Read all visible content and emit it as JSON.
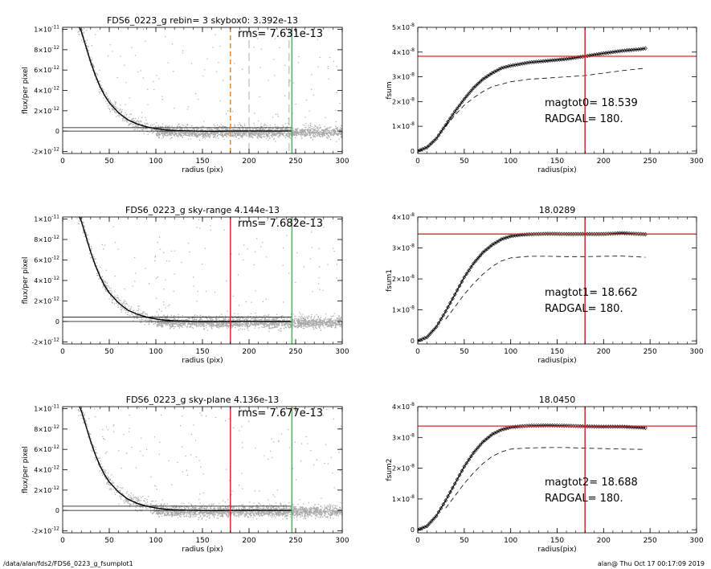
{
  "footer": {
    "left": "/data/alan/fds2/FDS6_0223_g_fsumplot1",
    "right": "alan@  Thu Oct 17 00:17:09 2019"
  },
  "colors": {
    "points": "#a8a8a8",
    "profile": "#000000",
    "red": "#d42a2a",
    "green": "#22d12a",
    "orange": "#e8892a",
    "gray_dash": "#9a9a9a"
  },
  "chart_data": [
    {
      "type": "scatter",
      "title": "FDS6_0223_g rebin= 3    skybox0:  3.392e-13",
      "annotation": "rms= 7.631e-13",
      "xlabel": "radius (pix)",
      "ylabel": "flux/per pixel",
      "xlim": [
        0,
        300
      ],
      "ylim": [
        -2.2e-12,
        1.02e-11
      ],
      "xticks": [
        "0",
        "50",
        "100",
        "150",
        "200",
        "250",
        "300"
      ],
      "yticks": [
        {
          "value": 1e-11,
          "mantissa": "1×10",
          "exp": "-11"
        },
        {
          "value": 8e-12,
          "mantissa": "8×10",
          "exp": "-12"
        },
        {
          "value": 6e-12,
          "mantissa": "6×10",
          "exp": "-12"
        },
        {
          "value": 4e-12,
          "mantissa": "4×10",
          "exp": "-12"
        },
        {
          "value": 2e-12,
          "mantissa": "2×10",
          "exp": "-12"
        },
        {
          "value": 0,
          "mantissa": "0",
          "exp": ""
        },
        {
          "value": -2e-12,
          "mantissa": "-2×10",
          "exp": "-12"
        }
      ],
      "profile": {
        "x": [
          18,
          20,
          25,
          30,
          35,
          40,
          45,
          50,
          60,
          70,
          80,
          90,
          100,
          110,
          120,
          140,
          160,
          180,
          200,
          220,
          245
        ],
        "y": [
          1.02e-11,
          9.8e-12,
          8.3e-12,
          6.8e-12,
          5.5e-12,
          4.4e-12,
          3.5e-12,
          2.8e-12,
          1.8e-12,
          1.1e-12,
          7e-13,
          4.2e-13,
          2.4e-13,
          1.2e-13,
          6e-14,
          0,
          -2e-14,
          0,
          1e-14,
          0,
          0
        ]
      },
      "hlines": [
        3.392e-13,
        0
      ],
      "vlines": [
        {
          "x": 180,
          "color": "orange",
          "dash": true
        },
        {
          "x": 200,
          "color": "gray",
          "dash": true
        },
        {
          "x": 243,
          "color": "gray",
          "dash": true
        },
        {
          "x": 246,
          "color": "green",
          "dash": false
        }
      ]
    },
    {
      "type": "line",
      "title": "",
      "xlabel": "radius(pix)",
      "ylabel": "fsum",
      "xlim": [
        0,
        300
      ],
      "ylim": [
        -1e-09,
        5e-08
      ],
      "xticks": [
        "0",
        "50",
        "100",
        "150",
        "200",
        "250",
        "300"
      ],
      "yticks": [
        {
          "value": 5e-08,
          "mantissa": "5×10",
          "exp": "-8"
        },
        {
          "value": 4e-08,
          "mantissa": "4×10",
          "exp": "-8"
        },
        {
          "value": 3e-08,
          "mantissa": "3×10",
          "exp": "-8"
        },
        {
          "value": 2e-08,
          "mantissa": "2×10",
          "exp": "-8"
        },
        {
          "value": 1e-08,
          "mantissa": "1×10",
          "exp": "-8"
        },
        {
          "value": 0,
          "mantissa": "0",
          "exp": ""
        }
      ],
      "curve": {
        "x": [
          0,
          10,
          20,
          30,
          40,
          50,
          60,
          70,
          80,
          90,
          100,
          120,
          140,
          160,
          180,
          200,
          220,
          240,
          245
        ],
        "y": [
          0,
          1.5e-09,
          5e-09,
          1.05e-08,
          1.6e-08,
          2.1e-08,
          2.55e-08,
          2.9e-08,
          3.15e-08,
          3.35e-08,
          3.45e-08,
          3.58e-08,
          3.65e-08,
          3.72e-08,
          3.83e-08,
          3.95e-08,
          4.05e-08,
          4.12e-08,
          4.15e-08
        ]
      },
      "dashed": {
        "x": [
          30,
          40,
          50,
          60,
          70,
          80,
          100,
          120,
          140,
          160,
          180,
          200,
          220,
          245
        ],
        "y": [
          1e-08,
          1.45e-08,
          1.85e-08,
          2.15e-08,
          2.4e-08,
          2.6e-08,
          2.8e-08,
          2.9e-08,
          2.95e-08,
          3e-08,
          3.05e-08,
          3.15e-08,
          3.25e-08,
          3.35e-08
        ]
      },
      "hline": 3.83e-08,
      "vline": 180,
      "annotations": [
        "magtot0=  18.539",
        "RADGAL=     180."
      ]
    },
    {
      "type": "scatter",
      "title": "FDS6_0223_g sky-range  4.144e-13",
      "annotation": "rms= 7.682e-13",
      "xlabel": "radius (pix)",
      "ylabel": "flux/per pixel",
      "xlim": [
        0,
        300
      ],
      "ylim": [
        -2.2e-12,
        1.02e-11
      ],
      "xticks": [
        "0",
        "50",
        "100",
        "150",
        "200",
        "250",
        "300"
      ],
      "yticks": [
        {
          "value": 1e-11,
          "mantissa": "1×10",
          "exp": "-11"
        },
        {
          "value": 8e-12,
          "mantissa": "8×10",
          "exp": "-12"
        },
        {
          "value": 6e-12,
          "mantissa": "6×10",
          "exp": "-12"
        },
        {
          "value": 4e-12,
          "mantissa": "4×10",
          "exp": "-12"
        },
        {
          "value": 2e-12,
          "mantissa": "2×10",
          "exp": "-12"
        },
        {
          "value": 0,
          "mantissa": "0",
          "exp": ""
        },
        {
          "value": -2e-12,
          "mantissa": "-2×10",
          "exp": "-12"
        }
      ],
      "profile": {
        "x": [
          18,
          20,
          25,
          30,
          35,
          40,
          45,
          50,
          60,
          70,
          80,
          90,
          100,
          110,
          120,
          140,
          160,
          180,
          200,
          220,
          245
        ],
        "y": [
          1.02e-11,
          9.8e-12,
          8.3e-12,
          6.8e-12,
          5.5e-12,
          4.4e-12,
          3.5e-12,
          2.8e-12,
          1.8e-12,
          1.1e-12,
          7e-13,
          4.2e-13,
          2.4e-13,
          1.2e-13,
          6e-14,
          0,
          -2e-14,
          0,
          1e-14,
          0,
          0
        ]
      },
      "hlines": [
        4.144e-13,
        0
      ],
      "vlines": [
        {
          "x": 180,
          "color": "red",
          "dash": false
        },
        {
          "x": 246,
          "color": "green",
          "dash": false
        }
      ]
    },
    {
      "type": "line",
      "title": "18.0289",
      "xlabel": "radius(pix)",
      "ylabel": "fsum1",
      "xlim": [
        0,
        300
      ],
      "ylim": [
        -1e-09,
        4e-08
      ],
      "xticks": [
        "0",
        "50",
        "100",
        "150",
        "200",
        "250",
        "300"
      ],
      "yticks": [
        {
          "value": 4e-08,
          "mantissa": "4×10",
          "exp": "-8"
        },
        {
          "value": 3e-08,
          "mantissa": "3×10",
          "exp": "-8"
        },
        {
          "value": 2e-08,
          "mantissa": "2×10",
          "exp": "-8"
        },
        {
          "value": 1e-08,
          "mantissa": "1×10",
          "exp": "-8"
        },
        {
          "value": 0,
          "mantissa": "0",
          "exp": ""
        }
      ],
      "curve": {
        "x": [
          0,
          10,
          20,
          30,
          40,
          50,
          60,
          70,
          80,
          90,
          100,
          110,
          120,
          140,
          160,
          180,
          200,
          220,
          240,
          245
        ],
        "y": [
          0,
          1.2e-09,
          4.5e-09,
          9.5e-09,
          1.5e-08,
          2.05e-08,
          2.5e-08,
          2.85e-08,
          3.1e-08,
          3.28e-08,
          3.38e-08,
          3.42e-08,
          3.44e-08,
          3.46e-08,
          3.45e-08,
          3.45e-08,
          3.45e-08,
          3.48e-08,
          3.45e-08,
          3.44e-08
        ]
      },
      "dashed": {
        "x": [
          30,
          40,
          50,
          60,
          70,
          80,
          90,
          100,
          120,
          140,
          160,
          180,
          200,
          220,
          245
        ],
        "y": [
          7e-09,
          1.1e-08,
          1.5e-08,
          1.85e-08,
          2.15e-08,
          2.4e-08,
          2.58e-08,
          2.68e-08,
          2.73e-08,
          2.73e-08,
          2.72e-08,
          2.72e-08,
          2.73e-08,
          2.74e-08,
          2.7e-08
        ]
      },
      "hline": 3.45e-08,
      "vline": 180,
      "annotations": [
        "magtot1=  18.662",
        "RADGAL=     180."
      ]
    },
    {
      "type": "scatter",
      "title": "FDS6_0223_g sky-plane  4.136e-13",
      "annotation": "rms= 7.677e-13",
      "xlabel": "radius (pix)",
      "ylabel": "flux/per pixel",
      "xlim": [
        0,
        300
      ],
      "ylim": [
        -2.2e-12,
        1.02e-11
      ],
      "xticks": [
        "0",
        "50",
        "100",
        "150",
        "200",
        "250",
        "300"
      ],
      "yticks": [
        {
          "value": 1e-11,
          "mantissa": "1×10",
          "exp": "-11"
        },
        {
          "value": 8e-12,
          "mantissa": "8×10",
          "exp": "-12"
        },
        {
          "value": 6e-12,
          "mantissa": "6×10",
          "exp": "-12"
        },
        {
          "value": 4e-12,
          "mantissa": "4×10",
          "exp": "-12"
        },
        {
          "value": 2e-12,
          "mantissa": "2×10",
          "exp": "-12"
        },
        {
          "value": 0,
          "mantissa": "0",
          "exp": ""
        },
        {
          "value": -2e-12,
          "mantissa": "-2×10",
          "exp": "-12"
        }
      ],
      "profile": {
        "x": [
          18,
          20,
          25,
          30,
          35,
          40,
          45,
          50,
          60,
          70,
          80,
          90,
          100,
          110,
          120,
          140,
          160,
          180,
          200,
          220,
          245
        ],
        "y": [
          1.02e-11,
          9.8e-12,
          8.3e-12,
          6.8e-12,
          5.5e-12,
          4.4e-12,
          3.5e-12,
          2.8e-12,
          1.8e-12,
          1.1e-12,
          7e-13,
          4.2e-13,
          2.4e-13,
          1.2e-13,
          6e-14,
          0,
          -2e-14,
          0,
          1e-14,
          0,
          0
        ]
      },
      "hlines": [
        4.136e-13,
        0
      ],
      "vlines": [
        {
          "x": 180,
          "color": "red",
          "dash": false
        },
        {
          "x": 246,
          "color": "green",
          "dash": false
        }
      ]
    },
    {
      "type": "line",
      "title": "18.0450",
      "xlabel": "radius(pix)",
      "ylabel": "fsum2",
      "xlim": [
        0,
        300
      ],
      "ylim": [
        -1e-09,
        4e-08
      ],
      "xticks": [
        "0",
        "50",
        "100",
        "150",
        "200",
        "250",
        "300"
      ],
      "yticks": [
        {
          "value": 4e-08,
          "mantissa": "4×10",
          "exp": "-8"
        },
        {
          "value": 3e-08,
          "mantissa": "3×10",
          "exp": "-8"
        },
        {
          "value": 2e-08,
          "mantissa": "2×10",
          "exp": "-8"
        },
        {
          "value": 1e-08,
          "mantissa": "1×10",
          "exp": "-8"
        },
        {
          "value": 0,
          "mantissa": "0",
          "exp": ""
        }
      ],
      "curve": {
        "x": [
          0,
          10,
          20,
          30,
          40,
          50,
          60,
          70,
          80,
          90,
          100,
          110,
          120,
          140,
          160,
          180,
          200,
          220,
          240,
          245
        ],
        "y": [
          0,
          1.2e-09,
          4.5e-09,
          9.5e-09,
          1.5e-08,
          2.05e-08,
          2.5e-08,
          2.85e-08,
          3.1e-08,
          3.25e-08,
          3.33e-08,
          3.36e-08,
          3.38e-08,
          3.39e-08,
          3.38e-08,
          3.36e-08,
          3.35e-08,
          3.35e-08,
          3.32e-08,
          3.31e-08
        ]
      },
      "dashed": {
        "x": [
          30,
          40,
          50,
          60,
          70,
          80,
          90,
          100,
          120,
          140,
          160,
          180,
          200,
          220,
          245
        ],
        "y": [
          7e-09,
          1.1e-08,
          1.5e-08,
          1.85e-08,
          2.15e-08,
          2.38e-08,
          2.53e-08,
          2.62e-08,
          2.66e-08,
          2.67e-08,
          2.67e-08,
          2.65e-08,
          2.64e-08,
          2.62e-08,
          2.61e-08
        ]
      },
      "hline": 3.37e-08,
      "vline": 180,
      "annotations": [
        "magtot2=  18.688",
        "RADGAL=     180."
      ]
    }
  ]
}
